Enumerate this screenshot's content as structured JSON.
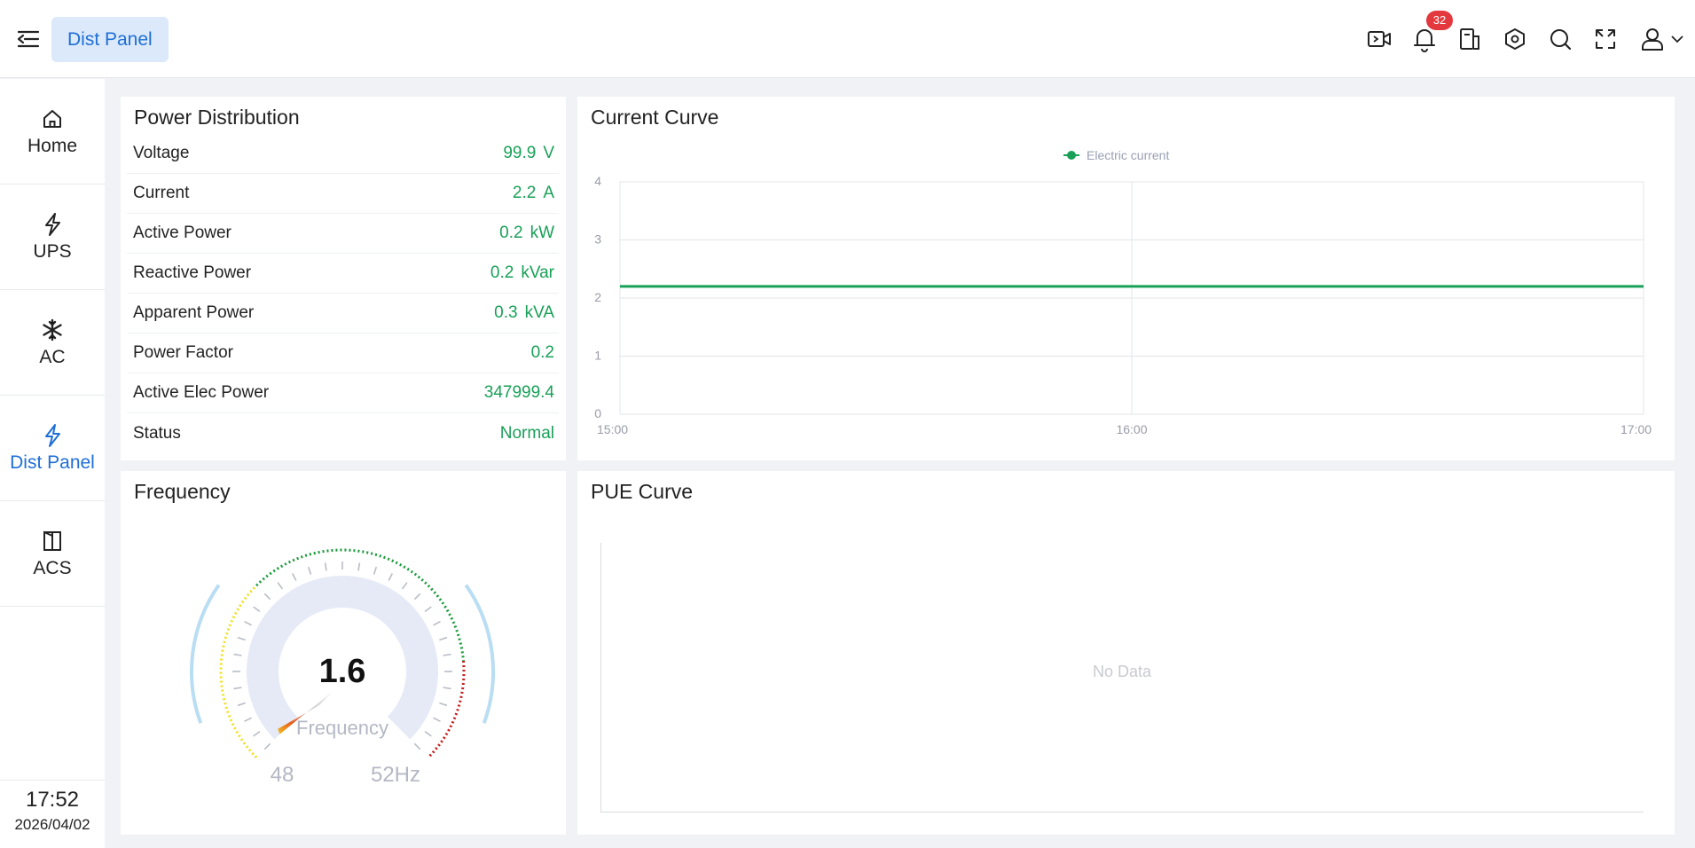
{
  "header": {
    "active_tab": "Dist Panel",
    "notification_count": "32",
    "icons": [
      "menu-fold-icon",
      "video-icon",
      "bell-icon",
      "document-icon",
      "settings-icon",
      "search-icon",
      "fullscreen-icon",
      "user-icon",
      "chevron-down-icon"
    ]
  },
  "sidebar": {
    "items": [
      {
        "label": "Home",
        "icon": "home-icon",
        "active": false
      },
      {
        "label": "UPS",
        "icon": "lightning-icon",
        "active": false
      },
      {
        "label": "AC",
        "icon": "snowflake-icon",
        "active": false
      },
      {
        "label": "Dist Panel",
        "icon": "lightning-icon",
        "active": true
      },
      {
        "label": "ACS",
        "icon": "door-icon",
        "active": false
      }
    ],
    "time": "17:52",
    "date": "2026/04/02"
  },
  "power_distribution": {
    "title": "Power Distribution",
    "rows": [
      {
        "label": "Voltage",
        "value": "99.9",
        "unit": "V"
      },
      {
        "label": "Current",
        "value": "2.2",
        "unit": "A"
      },
      {
        "label": "Active Power",
        "value": "0.2",
        "unit": "kW"
      },
      {
        "label": "Reactive Power",
        "value": "0.2",
        "unit": "kVar"
      },
      {
        "label": "Apparent Power",
        "value": "0.3",
        "unit": "kVA"
      },
      {
        "label": "Power Factor",
        "value": "0.2",
        "unit": ""
      },
      {
        "label": "Active Elec Power",
        "value": "347999.4",
        "unit": ""
      },
      {
        "label": "Status",
        "value": "Normal",
        "unit": ""
      }
    ]
  },
  "current_curve": {
    "title": "Current Curve",
    "colors": {
      "series": "#18a058",
      "grid": "#e3e5e8",
      "axis_text": "#9a9ca8",
      "legend_text": "#9aa0b4"
    },
    "chart_data": {
      "type": "line",
      "x": [
        "15:00",
        "16:00",
        "17:00"
      ],
      "series": [
        {
          "name": "Electric current",
          "values": [
            2.2,
            2.2,
            2.2
          ]
        }
      ],
      "ylim": [
        0,
        4
      ],
      "yticks": [
        0,
        1,
        2,
        3,
        4
      ],
      "grid": true,
      "legend": "top-center"
    }
  },
  "frequency": {
    "title": "Frequency",
    "value": "1.6",
    "label": "Frequency",
    "min_label": "48",
    "max_label": "52Hz",
    "colors": {
      "warn": "#f0e020",
      "ok": "#1a9a3c",
      "danger": "#c41a1a",
      "track": "#e5eaf6",
      "glow": "#a8d4f0"
    }
  },
  "pue_curve": {
    "title": "PUE Curve",
    "empty_text": "No Data"
  }
}
